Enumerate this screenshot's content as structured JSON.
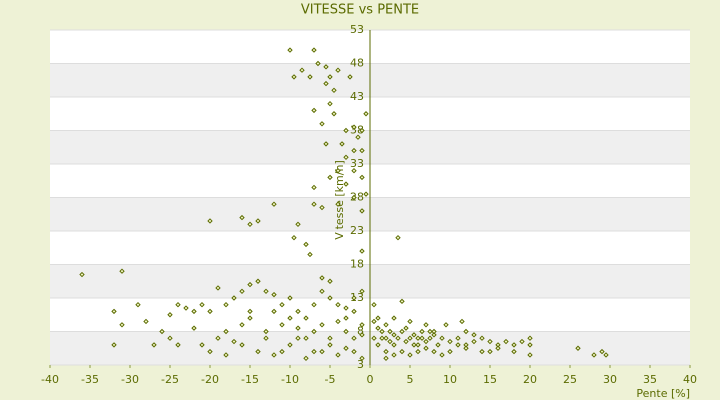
{
  "chart_data": {
    "type": "scatter",
    "title": "VITESSE vs PENTE",
    "x_label": "Pente [%]",
    "y_label": "Vitesse [km/h]",
    "color": "#5b6b00",
    "xlim": [
      -40,
      40
    ],
    "xticks": [
      -40,
      -35,
      -30,
      -25,
      -20,
      -15,
      -10,
      -5,
      0,
      5,
      10,
      15,
      20,
      25,
      30,
      35,
      40
    ],
    "ylim": [
      3,
      53
    ],
    "yticks": [
      3,
      8,
      13,
      18,
      23,
      28,
      33,
      38,
      43,
      48,
      53
    ],
    "grid": true,
    "x": [
      -10,
      -7,
      -9.5,
      -8.5,
      -7.5,
      -6.5,
      -5.5,
      -5,
      -4,
      -5.5,
      -4.5,
      -5,
      -4.5,
      -7,
      -6,
      -3,
      -2,
      -1,
      -3.5,
      -5.5,
      -2,
      -1,
      -3,
      -4,
      -2,
      -5,
      -1,
      -7,
      -3,
      -2,
      -7,
      -4,
      -6,
      -1,
      -0.5,
      -9,
      -9.5,
      -8,
      -7.5,
      -1,
      -12,
      -16,
      -15,
      -14,
      -20,
      3.5,
      -0.5,
      -2.5,
      -1.5,
      -36,
      -31,
      -32,
      -31,
      -28,
      -32,
      -27,
      -25,
      -24,
      -23,
      -22,
      -25,
      -24,
      -21,
      -20,
      -19,
      -18,
      -17,
      -16,
      -15,
      -14,
      -13,
      -12,
      -16,
      -15,
      -13,
      -12,
      -11,
      -10,
      -9,
      -8,
      -7,
      -6,
      -5,
      -4,
      -3,
      -2,
      -1,
      -20,
      -18,
      -16,
      -14,
      -12,
      -10,
      -8,
      -6,
      -4,
      -2,
      -1,
      -19,
      -17,
      -13,
      -11,
      -9,
      -7,
      -5,
      -3,
      -2,
      -1,
      -6,
      -4,
      -5,
      -6,
      -3,
      -2,
      -1,
      -8,
      -7,
      -5,
      -3,
      -15,
      -18,
      -22,
      -21,
      -29,
      -26,
      -10,
      -9,
      -11,
      0.5,
      1,
      1.5,
      2,
      2.5,
      3,
      3.5,
      4,
      4.5,
      5,
      5.5,
      6,
      6.5,
      7,
      7.5,
      8,
      8.5,
      9,
      10,
      11,
      12,
      13,
      14,
      15,
      16,
      17,
      18,
      19,
      20,
      20,
      18,
      20,
      26,
      28,
      29,
      29.5,
      2,
      3,
      4,
      5,
      6,
      7,
      8,
      9,
      10,
      11,
      12,
      11.5,
      9.5,
      7,
      5,
      3,
      1,
      4,
      0.5,
      2,
      4.5,
      3,
      6,
      8,
      1,
      2.5,
      5.5,
      7.5,
      14,
      16,
      1.5,
      6.5,
      0.5,
      2,
      12,
      13,
      15
    ],
    "values": [
      50,
      50,
      46,
      47,
      46,
      48,
      47.5,
      46,
      47,
      45,
      44,
      42,
      40.5,
      41,
      39,
      38,
      38.5,
      38,
      36,
      36,
      35,
      35,
      34,
      32,
      32,
      31,
      31,
      29.5,
      30,
      28,
      27,
      27,
      26.5,
      26,
      28.5,
      24,
      22,
      21,
      19.5,
      20,
      27,
      25,
      24,
      24.5,
      24.5,
      22,
      40.5,
      46,
      37,
      16.5,
      17,
      11,
      9,
      9.5,
      6,
      6,
      10.5,
      12,
      11.5,
      11,
      7,
      6,
      12,
      11,
      14.5,
      12,
      13,
      14,
      15,
      15.5,
      14,
      13.5,
      9,
      10,
      8,
      11,
      9,
      10,
      11,
      10,
      12,
      14,
      13,
      12,
      10,
      11,
      9,
      5,
      4.5,
      6,
      5,
      4.5,
      6,
      4,
      5,
      4.5,
      5,
      4,
      7,
      6.5,
      7,
      5,
      7,
      8,
      7,
      8,
      7,
      7.5,
      9,
      9.5,
      15.5,
      16,
      11.5,
      13,
      14,
      7,
      5,
      6,
      5.5,
      11,
      8,
      8.5,
      6,
      12,
      8,
      13,
      8.5,
      12,
      7,
      6,
      8,
      7,
      6.5,
      7.5,
      7,
      8,
      6.5,
      7,
      7.5,
      7,
      8,
      6.5,
      7,
      7.5,
      6,
      7,
      6.5,
      7,
      6,
      6.5,
      7,
      6.5,
      6,
      6.5,
      6,
      6.5,
      6,
      7,
      5,
      4.5,
      5.5,
      4.5,
      5,
      4.5,
      5,
      4.5,
      5,
      4.5,
      5,
      5.5,
      5,
      4.5,
      5,
      6,
      8,
      9.5,
      9,
      9,
      9.5,
      10,
      10,
      12.5,
      12,
      9,
      8.5,
      6,
      6,
      8,
      8.5,
      8,
      6,
      8,
      5,
      5.5,
      7,
      7,
      9.5,
      4,
      5.5,
      7.5,
      5
    ]
  }
}
